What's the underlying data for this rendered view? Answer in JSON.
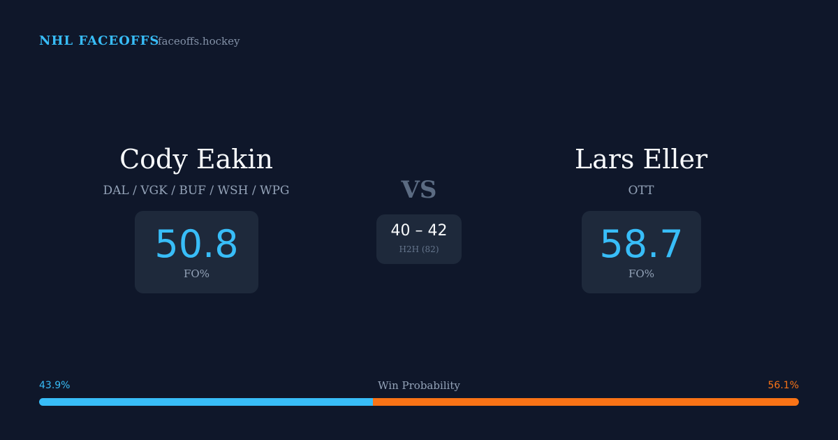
{
  "header": {
    "title": "NHL FACEOFFS",
    "site": "faceoffs.hockey"
  },
  "players": [
    {
      "name": "Cody Eakin",
      "teams": "DAL / VGK / BUF / WSH / WPG",
      "stat": "50.8",
      "stat_label": "FO%"
    },
    {
      "name": "Lars Eller",
      "teams": "OTT",
      "stat": "58.7",
      "stat_label": "FO%"
    }
  ],
  "versus": {
    "label": "VS",
    "record": "40 – 42",
    "record_label": "H2H (82)"
  },
  "win_probability": {
    "label": "Win Probability",
    "values": [
      43.9,
      56.1
    ],
    "value_labels": [
      "43.9%",
      "56.1%"
    ],
    "colors": [
      "#38bdf8",
      "#f97316"
    ]
  }
}
